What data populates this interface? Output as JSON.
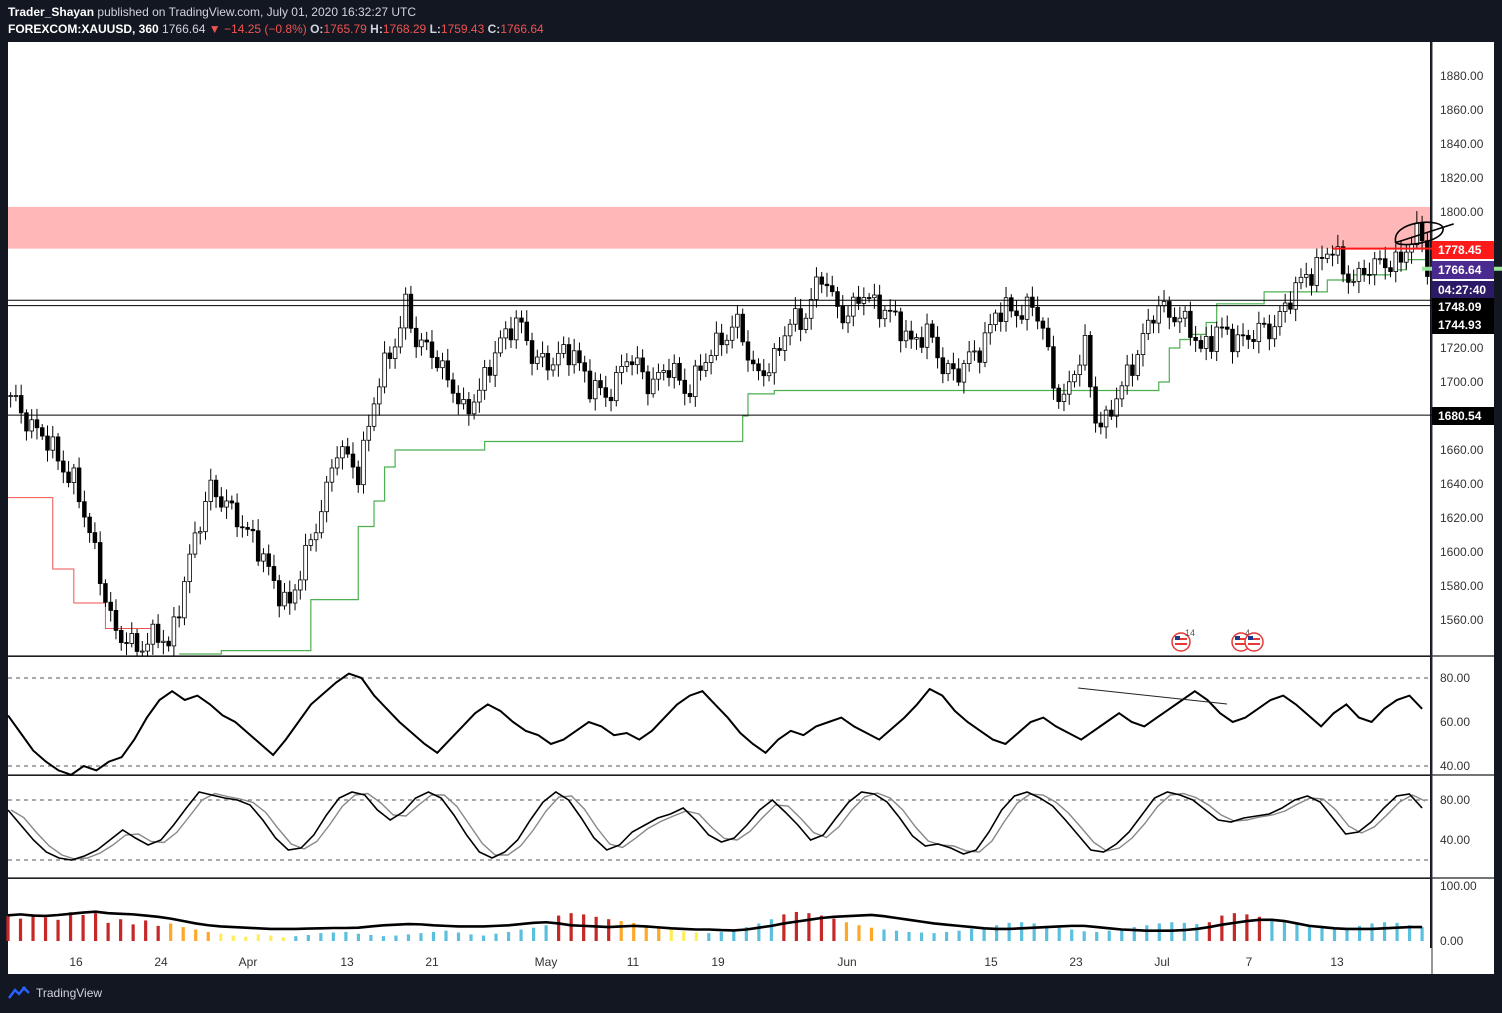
{
  "header": {
    "author": "Trader_Shayan",
    "published_text": "published on TradingView.com, July 01, 2020 16:32:27 UTC",
    "symbol": "FOREXCOM:XAUUSD, 360",
    "last": "1766.64",
    "change": "−14.25 (−0.8%)",
    "o_label": "O:",
    "o_value": "1765.79",
    "h_label": "H:",
    "h_value": "1768.29",
    "l_label": "L:",
    "l_value": "1759.43",
    "c_label": "C:",
    "c_value": "1766.64"
  },
  "footer": {
    "brand": "TradingView",
    "icon": "tradingview-logo-icon"
  },
  "colors": {
    "up": "#ffffff",
    "down": "#000000",
    "panel_bg": "#ffffff",
    "resistance_zone": "#ffb3b3",
    "resistance_line": "#ff1a1a",
    "trail_green": "#4caf50",
    "trail_red": "#ef5350",
    "price_badge": "#4a2a8f",
    "vol_cyan": "#5bc0de",
    "vol_yellow": "#ffee58",
    "vol_orange": "#ffa726",
    "vol_red": "#c62828"
  },
  "price_axis": {
    "labels": [
      "1880.00",
      "1860.00",
      "1840.00",
      "1820.00",
      "1800.00",
      "1720.00",
      "1700.00",
      "1660.00",
      "1640.00",
      "1620.00",
      "1600.00",
      "1580.00",
      "1560.00"
    ],
    "badges": [
      {
        "text": "1778.45",
        "kind": "red"
      },
      {
        "text": "1766.64",
        "kind": "purple"
      },
      {
        "text": "04:27:40",
        "kind": "purple-dark"
      },
      {
        "text": "1748.09",
        "kind": "black"
      },
      {
        "text": "1744.93",
        "kind": "black"
      },
      {
        "text": "1680.54",
        "kind": "black"
      }
    ]
  },
  "rsi_axis": [
    "80.00",
    "60.00",
    "40.00"
  ],
  "stoch_axis": [
    "80.00",
    "40.00"
  ],
  "vol_axis": [
    "100.00",
    "0.00"
  ],
  "time_axis": [
    "16",
    "24",
    "Apr",
    "13",
    "21",
    "May",
    "11",
    "19",
    "Jun",
    "15",
    "23",
    "Jul",
    "7",
    "13"
  ],
  "events": [
    {
      "count": "14"
    },
    {
      "count": "4"
    }
  ],
  "chart_data": {
    "type": "candlestick",
    "symbol": "FOREXCOM:XAUUSD",
    "interval": "360",
    "ylim": [
      1545,
      1900
    ],
    "x_ticks": [
      "16",
      "24",
      "Apr",
      "13",
      "21",
      "May",
      "11",
      "19",
      "Jun",
      "15",
      "23",
      "Jul",
      "7",
      "13"
    ],
    "price_path": [
      [
        0,
        1690
      ],
      [
        6,
        1668
      ],
      [
        12,
        1642
      ],
      [
        16,
        1600
      ],
      [
        20,
        1550
      ],
      [
        24,
        1545
      ],
      [
        28,
        1550
      ],
      [
        30,
        1545
      ],
      [
        34,
        1595
      ],
      [
        38,
        1640
      ],
      [
        42,
        1622
      ],
      [
        46,
        1610
      ],
      [
        50,
        1580
      ],
      [
        53,
        1570
      ],
      [
        57,
        1605
      ],
      [
        62,
        1660
      ],
      [
        66,
        1648
      ],
      [
        70,
        1700
      ],
      [
        73,
        1725
      ],
      [
        75,
        1745
      ],
      [
        77,
        1722
      ],
      [
        80,
        1720
      ],
      [
        83,
        1700
      ],
      [
        86,
        1683
      ],
      [
        90,
        1700
      ],
      [
        93,
        1725
      ],
      [
        96,
        1737
      ],
      [
        99,
        1715
      ],
      [
        103,
        1712
      ],
      [
        107,
        1718
      ],
      [
        110,
        1698
      ],
      [
        113,
        1690
      ],
      [
        117,
        1715
      ],
      [
        121,
        1700
      ],
      [
        125,
        1708
      ],
      [
        128,
        1695
      ],
      [
        132,
        1712
      ],
      [
        136,
        1730
      ],
      [
        138,
        1735
      ],
      [
        141,
        1705
      ],
      [
        145,
        1712
      ],
      [
        148,
        1735
      ],
      [
        151,
        1740
      ],
      [
        154,
        1762
      ],
      [
        157,
        1745
      ],
      [
        159,
        1738
      ],
      [
        162,
        1752
      ],
      [
        165,
        1745
      ],
      [
        168,
        1735
      ],
      [
        171,
        1725
      ],
      [
        174,
        1728
      ],
      [
        177,
        1710
      ],
      [
        180,
        1705
      ],
      [
        184,
        1720
      ],
      [
        187,
        1740
      ],
      [
        191,
        1742
      ],
      [
        194,
        1745
      ],
      [
        196,
        1730
      ],
      [
        198,
        1700
      ],
      [
        200,
        1690
      ],
      [
        202,
        1705
      ],
      [
        204,
        1720
      ],
      [
        206,
        1680
      ],
      [
        208,
        1675
      ],
      [
        210,
        1690
      ],
      [
        212,
        1705
      ],
      [
        215,
        1725
      ],
      [
        218,
        1745
      ],
      [
        221,
        1740
      ],
      [
        224,
        1730
      ],
      [
        226,
        1720
      ],
      [
        229,
        1730
      ],
      [
        232,
        1725
      ],
      [
        236,
        1728
      ],
      [
        239,
        1730
      ],
      [
        242,
        1745
      ],
      [
        246,
        1762
      ],
      [
        249,
        1773
      ],
      [
        251,
        1778
      ],
      [
        253,
        1764
      ],
      [
        256,
        1762
      ],
      [
        259,
        1768
      ],
      [
        262,
        1772
      ],
      [
        264,
        1770
      ],
      [
        266,
        1783
      ],
      [
        268,
        1788
      ],
      [
        269,
        1766
      ]
    ],
    "resistance_zone": [
      1778.45,
      1803
    ],
    "levels": [
      1778.45,
      1748.09,
      1744.93,
      1680.54
    ],
    "last_price": 1766.64,
    "rsi": {
      "levels": [
        80,
        60,
        40
      ],
      "values": [
        63,
        55,
        47,
        42,
        38,
        36,
        40,
        38,
        42,
        44,
        52,
        62,
        70,
        74,
        70,
        72,
        68,
        63,
        60,
        55,
        50,
        45,
        52,
        60,
        68,
        73,
        78,
        82,
        80,
        72,
        66,
        60,
        55,
        50,
        46,
        52,
        58,
        64,
        68,
        65,
        60,
        56,
        54,
        50,
        52,
        56,
        60,
        58,
        54,
        55,
        52,
        56,
        62,
        68,
        72,
        74,
        68,
        62,
        55,
        50,
        46,
        52,
        56,
        54,
        58,
        60,
        62,
        58,
        55,
        52,
        57,
        62,
        68,
        75,
        72,
        65,
        60,
        56,
        52,
        50,
        55,
        60,
        62,
        58,
        55,
        52,
        56,
        60,
        64,
        60,
        58,
        62,
        66,
        70,
        74,
        70,
        64,
        60,
        62,
        66,
        70,
        72,
        68,
        63,
        58,
        64,
        68,
        62,
        60,
        66,
        70,
        72,
        66
      ]
    },
    "stoch": {
      "levels": [
        80,
        20
      ],
      "k": [
        70,
        55,
        40,
        28,
        22,
        20,
        24,
        30,
        40,
        50,
        42,
        35,
        40,
        55,
        72,
        88,
        85,
        82,
        80,
        75,
        60,
        42,
        30,
        32,
        45,
        65,
        82,
        88,
        85,
        70,
        60,
        68,
        82,
        88,
        82,
        65,
        45,
        28,
        22,
        28,
        40,
        60,
        78,
        88,
        80,
        62,
        42,
        30,
        35,
        48,
        55,
        62,
        66,
        72,
        60,
        45,
        38,
        42,
        55,
        70,
        80,
        68,
        55,
        40,
        45,
        62,
        78,
        88,
        86,
        78,
        62,
        44,
        34,
        36,
        32,
        26,
        30,
        48,
        70,
        84,
        88,
        82,
        74,
        60,
        45,
        30,
        28,
        36,
        48,
        65,
        82,
        88,
        85,
        80,
        70,
        60,
        58,
        62,
        64,
        66,
        72,
        80,
        84,
        78,
        62,
        46,
        48,
        58,
        72,
        84,
        86,
        72
      ]
    },
    "volume": {
      "ylim": [
        0,
        100
      ],
      "avg": [
        85,
        88,
        84,
        83,
        86,
        90,
        94,
        97,
        92,
        90,
        88,
        84,
        80,
        74,
        66,
        58,
        52,
        48,
        46,
        44,
        42,
        40,
        40,
        40,
        41,
        42,
        43,
        43,
        44,
        48,
        52,
        54,
        56,
        55,
        52,
        50,
        48,
        48,
        48,
        50,
        52,
        56,
        60,
        62,
        58,
        52,
        50,
        48,
        46,
        48,
        50,
        48,
        45,
        42,
        40,
        38,
        38,
        36,
        35,
        38,
        44,
        50,
        58,
        64,
        70,
        76,
        80,
        82,
        84,
        86,
        82,
        76,
        70,
        64,
        58,
        54,
        50,
        46,
        42,
        40,
        40,
        42,
        44,
        46,
        48,
        50,
        50,
        46,
        42,
        38,
        36,
        34,
        34,
        34,
        36,
        40,
        46,
        54,
        60,
        66,
        70,
        70,
        66,
        58,
        50,
        46,
        42,
        40,
        40,
        40,
        42,
        44,
        46,
        46
      ],
      "bars": [
        82,
        74,
        88,
        78,
        70,
        95,
        86,
        92,
        60,
        72,
        55,
        68,
        50,
        58,
        46,
        38,
        30,
        24,
        18,
        14,
        22,
        18,
        12,
        16,
        20,
        26,
        28,
        30,
        24,
        20,
        16,
        18,
        22,
        26,
        30,
        34,
        28,
        22,
        18,
        24,
        30,
        38,
        44,
        52,
        84,
        92,
        88,
        80,
        72,
        66,
        60,
        52,
        44,
        38,
        32,
        28,
        26,
        30,
        38,
        46,
        58,
        72,
        88,
        96,
        92,
        84,
        74,
        62,
        52,
        44,
        38,
        34,
        30,
        28,
        26,
        30,
        34,
        40,
        46,
        52,
        60,
        62,
        58,
        50,
        44,
        38,
        32,
        30,
        34,
        40,
        46,
        52,
        58,
        62,
        60,
        56,
        62,
        84,
        92,
        88,
        80,
        72,
        64,
        56,
        48,
        42,
        38,
        42,
        50,
        58,
        62,
        60,
        52,
        46
      ]
    }
  }
}
